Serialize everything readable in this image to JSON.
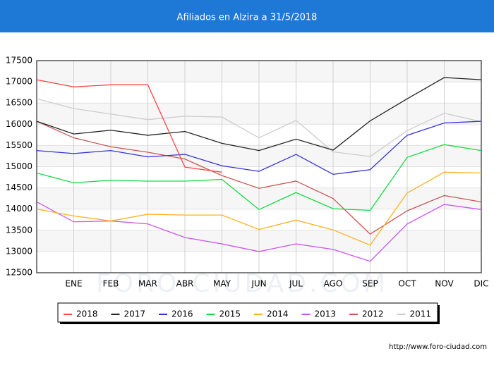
{
  "chart_data": {
    "type": "line",
    "title": "Afiliados en Alzira a 31/5/2018",
    "categories": [
      null,
      "ENE",
      "FEB",
      "MAR",
      "ABR",
      "MAY",
      "JUN",
      "JUL",
      "AGO",
      "SEP",
      "OCT",
      "NOV",
      "DIC"
    ],
    "series": [
      {
        "name": "2018",
        "color": "#ff4444",
        "values": [
          17050,
          16880,
          16930,
          16930,
          14990,
          14870,
          null,
          null,
          null,
          null,
          null,
          null,
          null
        ]
      },
      {
        "name": "2017",
        "color": "#222222",
        "values": [
          16070,
          15770,
          15860,
          15740,
          15830,
          15550,
          15380,
          15650,
          15390,
          16080,
          16600,
          17100,
          17050
        ]
      },
      {
        "name": "2016",
        "color": "#3333dd",
        "values": [
          15380,
          15310,
          15380,
          15230,
          15290,
          15020,
          14890,
          15290,
          14820,
          14930,
          15740,
          16030,
          16070
        ]
      },
      {
        "name": "2015",
        "color": "#11dd44",
        "values": [
          14850,
          14620,
          14680,
          14660,
          14660,
          14700,
          13990,
          14390,
          14010,
          13970,
          15220,
          15520,
          15380
        ]
      },
      {
        "name": "2014",
        "color": "#ffb020",
        "values": [
          14000,
          13840,
          13720,
          13880,
          13860,
          13860,
          13520,
          13740,
          13510,
          13150,
          14380,
          14870,
          14850
        ]
      },
      {
        "name": "2013",
        "color": "#cc55ee",
        "values": [
          14170,
          13700,
          13720,
          13650,
          13330,
          13180,
          13000,
          13180,
          13050,
          12770,
          13650,
          14110,
          13990
        ]
      },
      {
        "name": "2012",
        "color": "#cc5555",
        "values": [
          16070,
          15680,
          15470,
          15340,
          15180,
          14790,
          14490,
          14660,
          14250,
          13410,
          13960,
          14320,
          14170
        ]
      },
      {
        "name": "2011",
        "color": "#cccccc",
        "values": [
          16600,
          16370,
          16240,
          16110,
          16190,
          16170,
          15680,
          16090,
          15350,
          15240,
          15850,
          16260,
          16060
        ]
      }
    ],
    "ylim": [
      12500,
      17500
    ],
    "yticks": [
      12500,
      13000,
      13500,
      14000,
      14500,
      15000,
      15500,
      16000,
      16500,
      17000,
      17500
    ],
    "grid": true,
    "watermark": "FORO-CIUDAD.COM",
    "footer": "http://www.foro-ciudad.com"
  }
}
